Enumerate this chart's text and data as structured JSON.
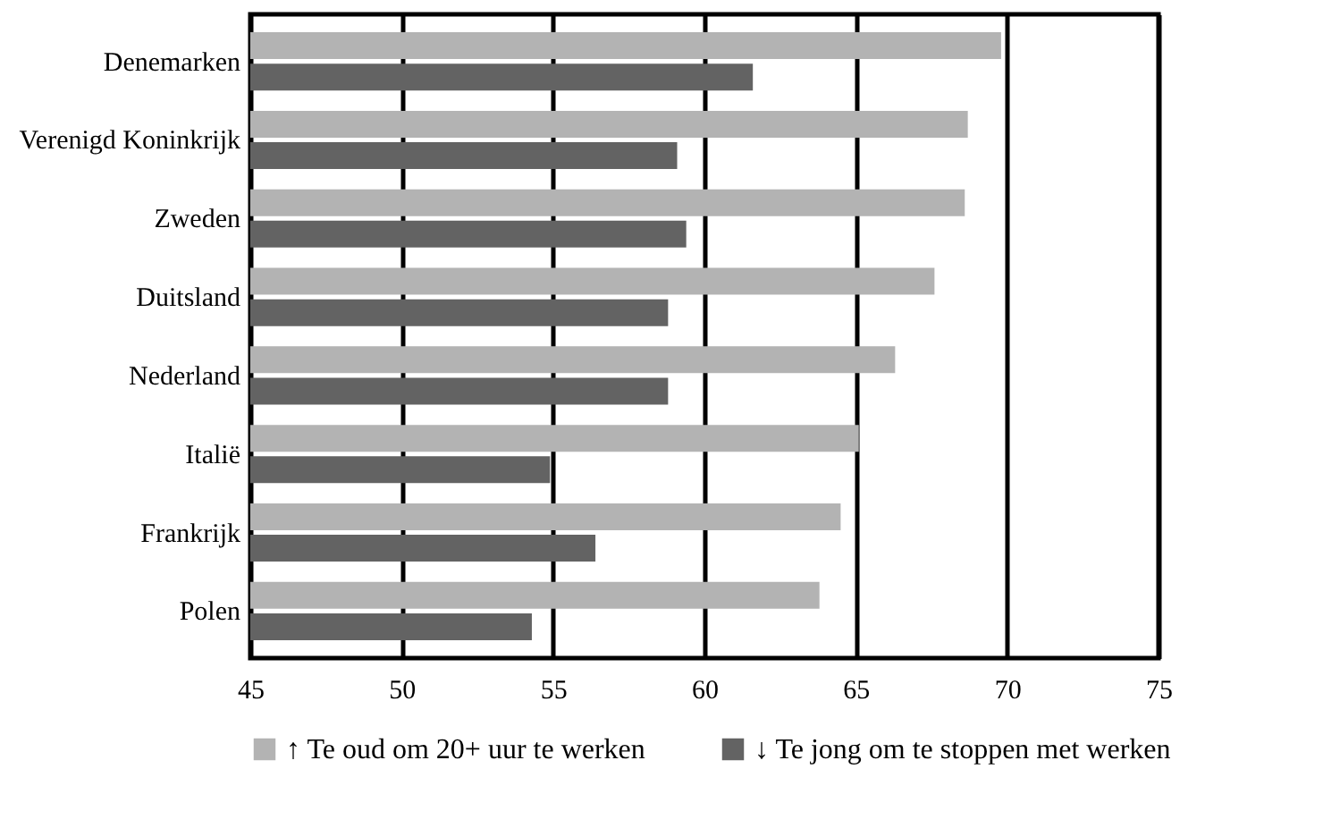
{
  "chart_data": {
    "type": "bar",
    "orientation": "horizontal",
    "categories": [
      "Denemarken",
      "Verenigd Koninkrijk",
      "Zweden",
      "Duitsland",
      "Nederland",
      "Italië",
      "Frankrijk",
      "Polen"
    ],
    "series": [
      {
        "name": "↑ Te oud om 20+ uur te werken",
        "color": "#b3b3b3",
        "values": [
          69.8,
          68.7,
          68.6,
          67.6,
          66.3,
          65.1,
          64.5,
          63.8
        ]
      },
      {
        "name": "↓ Te jong om te stoppen met werken",
        "color": "#636363",
        "values": [
          61.6,
          59.1,
          59.4,
          58.8,
          58.8,
          54.9,
          56.4,
          54.3
        ]
      }
    ],
    "xlim": [
      45,
      75
    ],
    "xticks": [
      45,
      50,
      55,
      60,
      65,
      70,
      75
    ],
    "grid": "x",
    "legend": "bottom"
  }
}
